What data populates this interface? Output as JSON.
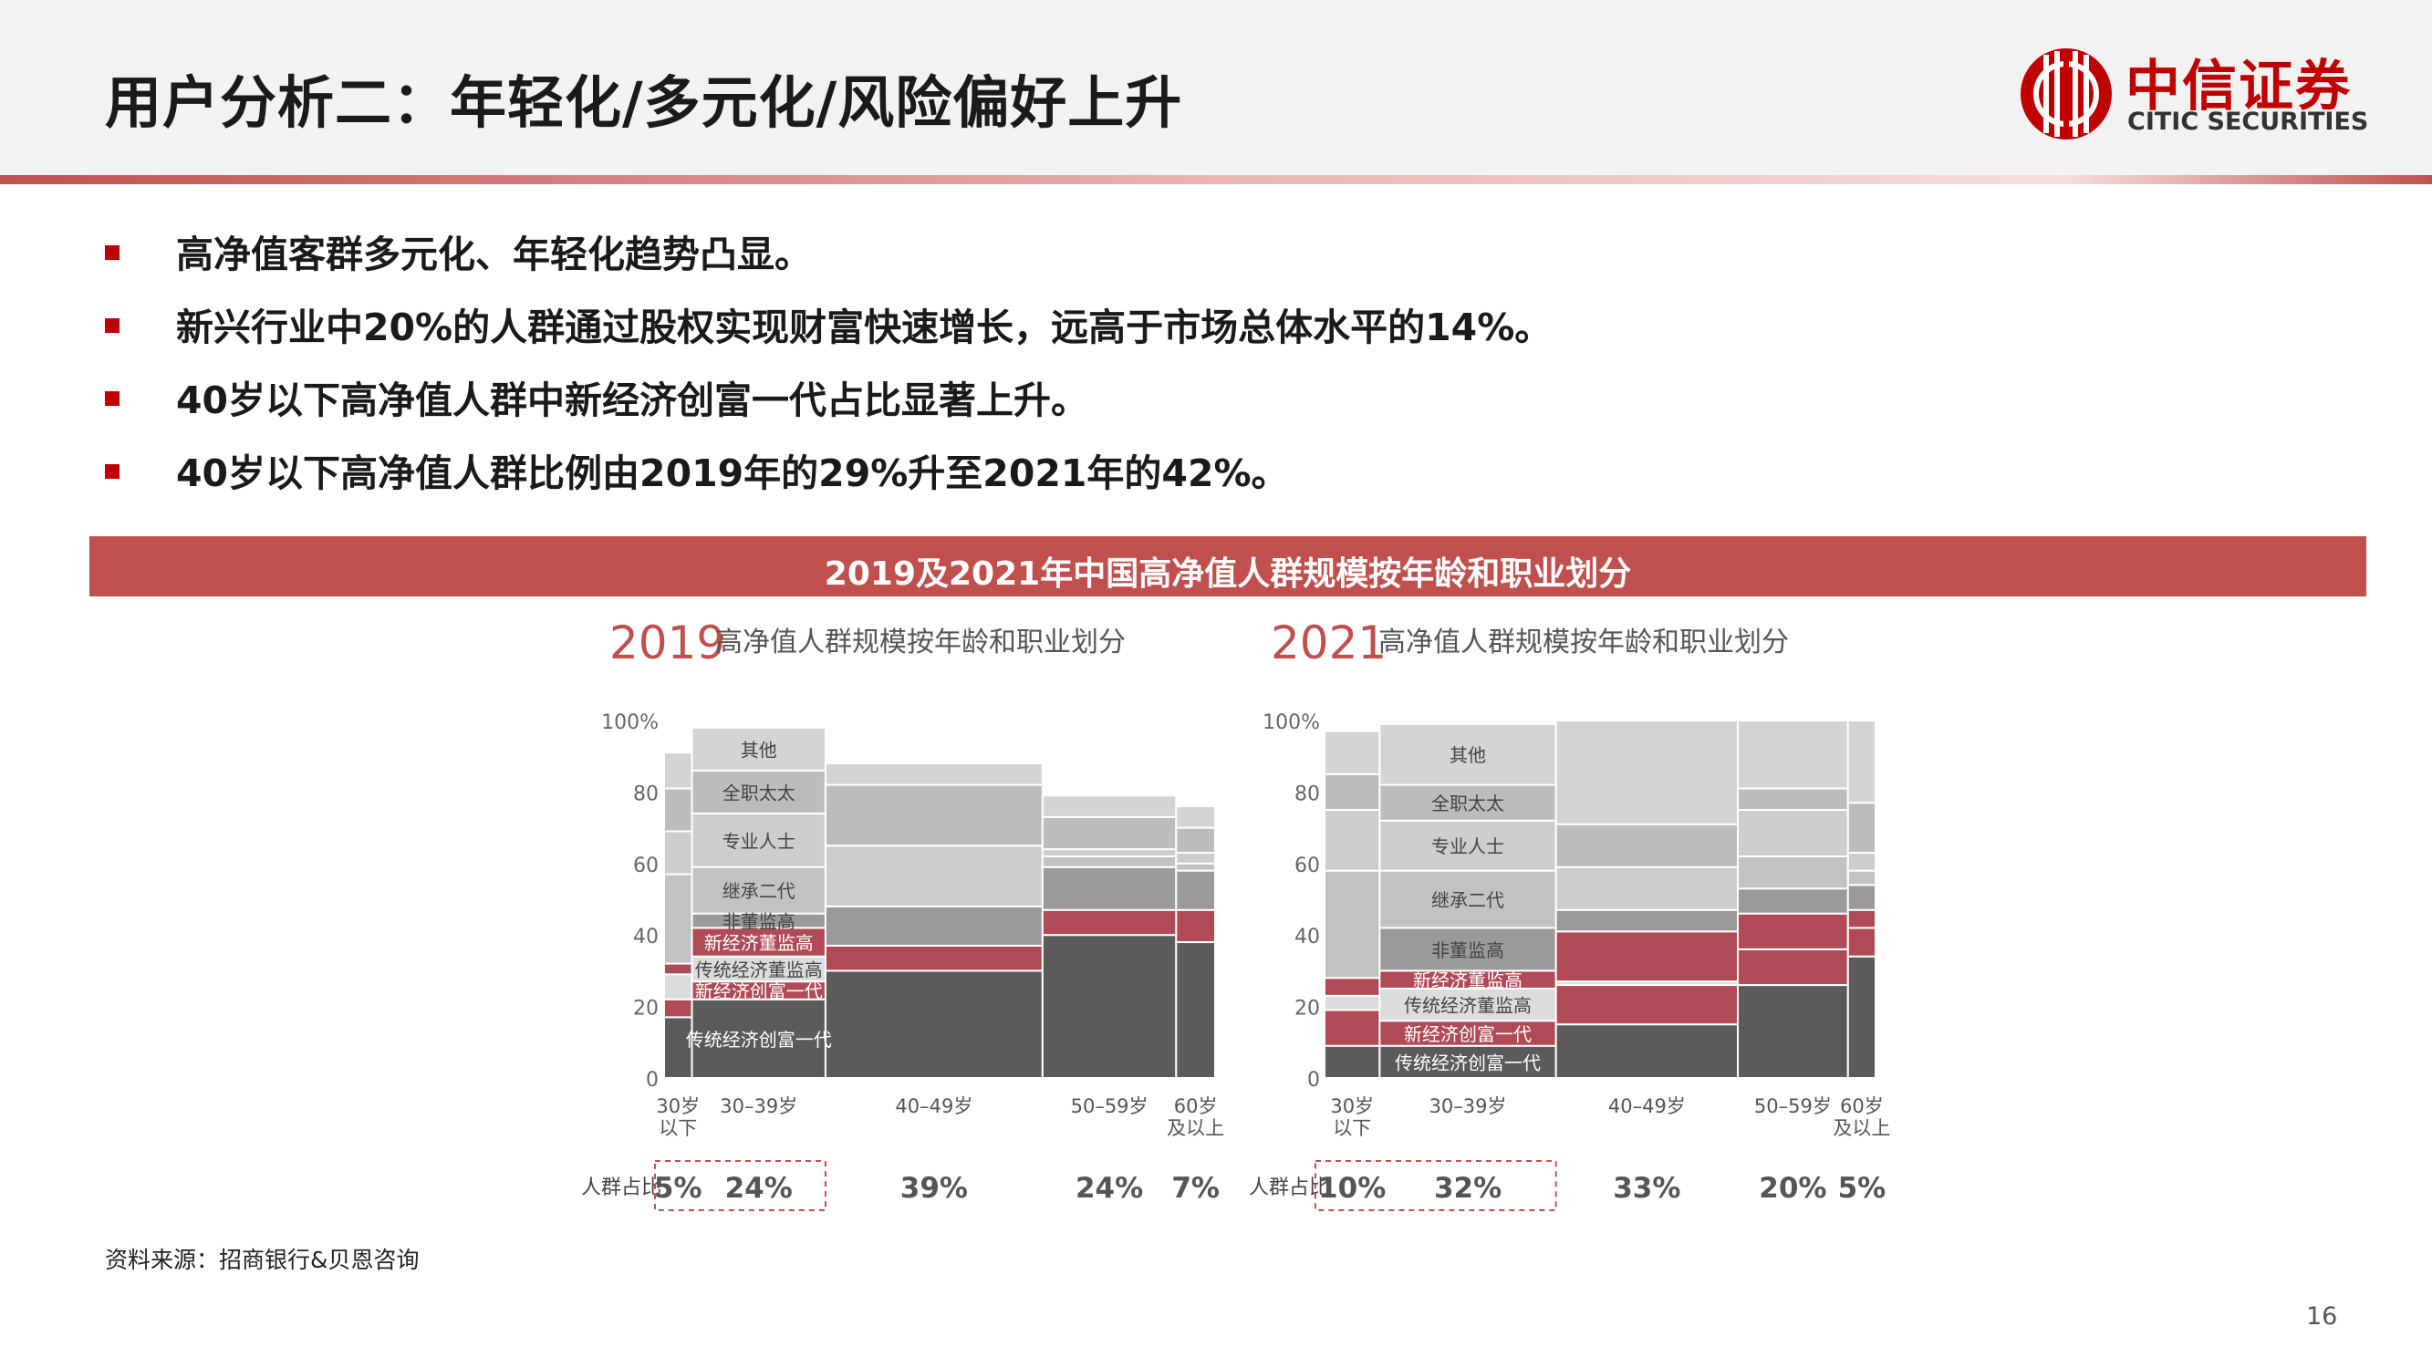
{
  "page": {
    "title": "用户分析二：年轻化/多元化/风险偏好上升",
    "bullets": [
      "高净值客群多元化、年轻化趋势凸显。",
      "新兴行业中20%的人群通过股权实现财富快速增长，远高于市场总体水平的14%。",
      "40岁以下高净值人群中新经济创富一代占比显著上升。",
      "40岁以下高净值人群比例由2019年的29%升至2021年的42%。"
    ],
    "banner": "2019及2021年中国高净值人群规模按年龄和职业划分",
    "source": "资料来源：招商银行&贝恩咨询",
    "page_number": "16"
  },
  "logo": {
    "name_cn": "中信证券",
    "name_en": "CITIC SECURITIES",
    "icon": "citic-logo-icon",
    "color": "#c00000"
  },
  "colors": {
    "accent": "#c0504d",
    "传统经济创富一代": "#5b5b5b",
    "新经济创富一代": "#b04a56",
    "传统经济董监高": "#dcdcdc",
    "新经济董监高": "#b04a56",
    "非董监高": "#9a9a9a",
    "继承二代": "#c2c2c2",
    "专业人士": "#cdcdcd",
    "全职太太": "#bcbcbc",
    "其他": "#d4d4d4"
  },
  "chart_data": [
    {
      "type": "bar",
      "title_year": "2019",
      "title": "高净值人群规模按年龄和职业划分",
      "ylim": [
        0,
        100
      ],
      "yticks": [
        "0",
        "20",
        "40",
        "60",
        "80",
        "100%"
      ],
      "categories": [
        "30岁以下",
        "30–39岁",
        "40–49岁",
        "50–59岁",
        "60岁及以上"
      ],
      "category_labels": [
        [
          "30岁",
          "以下"
        ],
        [
          "30–39岁"
        ],
        [
          "40–49岁"
        ],
        [
          "50–59岁"
        ],
        [
          "60岁",
          "及以上"
        ]
      ],
      "widths": [
        5,
        24,
        39,
        24,
        7
      ],
      "width_labels": [
        "5%",
        "24%",
        "39%",
        "24%",
        "7%"
      ],
      "share_label": "人群占比",
      "series": [
        {
          "name": "传统经济创富一代",
          "values": [
            17,
            22,
            30,
            40,
            38
          ]
        },
        {
          "name": "新经济创富一代",
          "values": [
            5,
            5,
            0,
            0,
            0
          ]
        },
        {
          "name": "传统经济董监高",
          "values": [
            7,
            7,
            0,
            0,
            0
          ]
        },
        {
          "name": "新经济董监高",
          "values": [
            3,
            8,
            7,
            7,
            9
          ]
        },
        {
          "name": "非董监高",
          "values": [
            0,
            4,
            11,
            12,
            11
          ]
        },
        {
          "name": "继承二代",
          "values": [
            25,
            13,
            0,
            3,
            2
          ]
        },
        {
          "name": "专业人士",
          "values": [
            12,
            15,
            17,
            2,
            3
          ]
        },
        {
          "name": "全职太太",
          "values": [
            12,
            12,
            17,
            9,
            7
          ]
        },
        {
          "name": "其他",
          "values": [
            10,
            12,
            6,
            6,
            6
          ]
        }
      ]
    },
    {
      "type": "bar",
      "title_year": "2021",
      "title": "高净值人群规模按年龄和职业划分",
      "ylim": [
        0,
        100
      ],
      "yticks": [
        "0",
        "20",
        "40",
        "60",
        "80",
        "100%"
      ],
      "categories": [
        "30岁以下",
        "30–39岁",
        "40–49岁",
        "50–59岁",
        "60岁及以上"
      ],
      "category_labels": [
        [
          "30岁",
          "以下"
        ],
        [
          "30–39岁"
        ],
        [
          "40–49岁"
        ],
        [
          "50–59岁"
        ],
        [
          "60岁",
          "及以上"
        ]
      ],
      "widths": [
        10,
        32,
        33,
        20,
        5
      ],
      "width_labels": [
        "10%",
        "32%",
        "33%",
        "20%",
        "5%"
      ],
      "share_label": "人群占比",
      "series": [
        {
          "name": "传统经济创富一代",
          "values": [
            9,
            9,
            15,
            26,
            34
          ]
        },
        {
          "name": "新经济创富一代",
          "values": [
            10,
            7,
            11,
            10,
            8
          ]
        },
        {
          "name": "传统经济董监高",
          "values": [
            4,
            9,
            1,
            0,
            0
          ]
        },
        {
          "name": "新经济董监高",
          "values": [
            5,
            5,
            14,
            10,
            5
          ]
        },
        {
          "name": "非董监高",
          "values": [
            0,
            12,
            6,
            7,
            7
          ]
        },
        {
          "name": "继承二代",
          "values": [
            30,
            16,
            0,
            9,
            4
          ]
        },
        {
          "name": "专业人士",
          "values": [
            17,
            14,
            12,
            13,
            5
          ]
        },
        {
          "name": "全职太太",
          "values": [
            10,
            10,
            12,
            6,
            14
          ]
        },
        {
          "name": "其他",
          "values": [
            12,
            17,
            29,
            19,
            23
          ]
        }
      ]
    }
  ]
}
